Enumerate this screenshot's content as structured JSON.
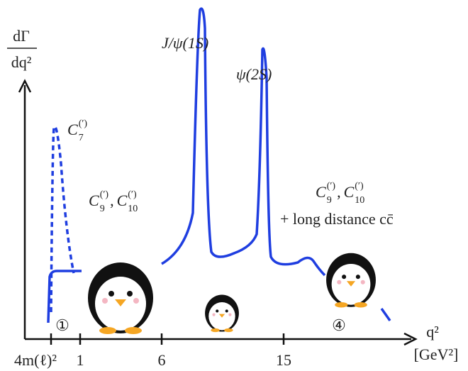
{
  "y_axis_label": {
    "numerator": "dΓ",
    "denominator": "dq²"
  },
  "x_axis_label": {
    "variable": "q²",
    "unit": "[GeV²]"
  },
  "x_tick_labels": [
    "4m(ℓ)²",
    "1",
    "6",
    "15"
  ],
  "peaks": [
    {
      "label": "J/ψ(1S)"
    },
    {
      "label": "ψ(2S)"
    }
  ],
  "annotations": [
    {
      "parts": [
        {
          "base": "C",
          "sub": "7",
          "sup": "(′)"
        }
      ],
      "suffix": ""
    },
    {
      "parts": [
        {
          "base": "C",
          "sub": "9",
          "sup": "(′)"
        },
        {
          "separator": ", "
        },
        {
          "base": "C",
          "sub": "10",
          "sup": "(′)"
        }
      ]
    },
    {
      "parts": [
        {
          "base": "C",
          "sub": "9",
          "sup": "(′)"
        },
        {
          "separator": ", "
        },
        {
          "base": "C",
          "sub": "10",
          "sup": "(′)"
        }
      ],
      "extra": "+ long distance cc̄"
    }
  ],
  "region_markers": [
    "①",
    "④"
  ]
}
